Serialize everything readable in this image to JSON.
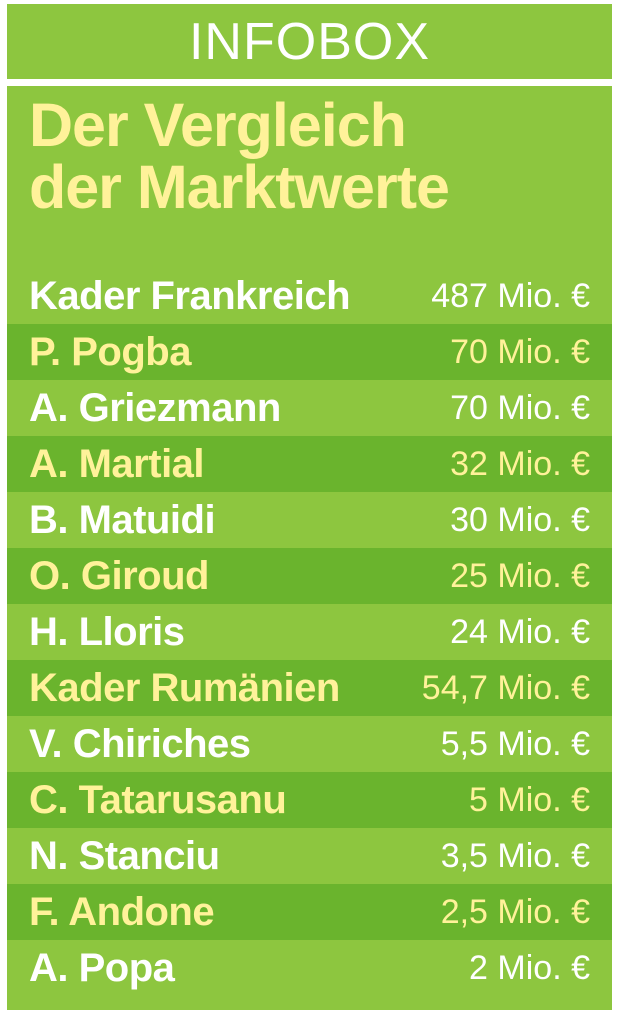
{
  "header": {
    "label": "INFOBOX"
  },
  "title": {
    "line1": "Der Vergleich",
    "line2": "der Marktwerte"
  },
  "rows": [
    {
      "name": "Kader Frankreich",
      "value": "487 Mio. €"
    },
    {
      "name": "P. Pogba",
      "value": "70 Mio. €"
    },
    {
      "name": "A. Griezmann",
      "value": "70 Mio. €"
    },
    {
      "name": "A. Martial",
      "value": "32 Mio. €"
    },
    {
      "name": "B. Matuidi",
      "value": "30 Mio. €"
    },
    {
      "name": "O. Giroud",
      "value": "25 Mio. €"
    },
    {
      "name": "H. Lloris",
      "value": "24 Mio. €"
    },
    {
      "name": "Kader Rumänien",
      "value": "54,7 Mio. €"
    },
    {
      "name": "V. Chiriches",
      "value": "5,5 Mio. €"
    },
    {
      "name": "C. Tatarusanu",
      "value": "5 Mio. €"
    },
    {
      "name": "N. Stanciu",
      "value": "3,5 Mio. €"
    },
    {
      "name": "F. Andone",
      "value": "2,5 Mio. €"
    },
    {
      "name": "A. Popa",
      "value": "2 Mio. €"
    }
  ],
  "colors": {
    "background": "#8dc63f",
    "stripe": "#6ab42d",
    "title": "#fff29a",
    "text": "#ffffff"
  }
}
